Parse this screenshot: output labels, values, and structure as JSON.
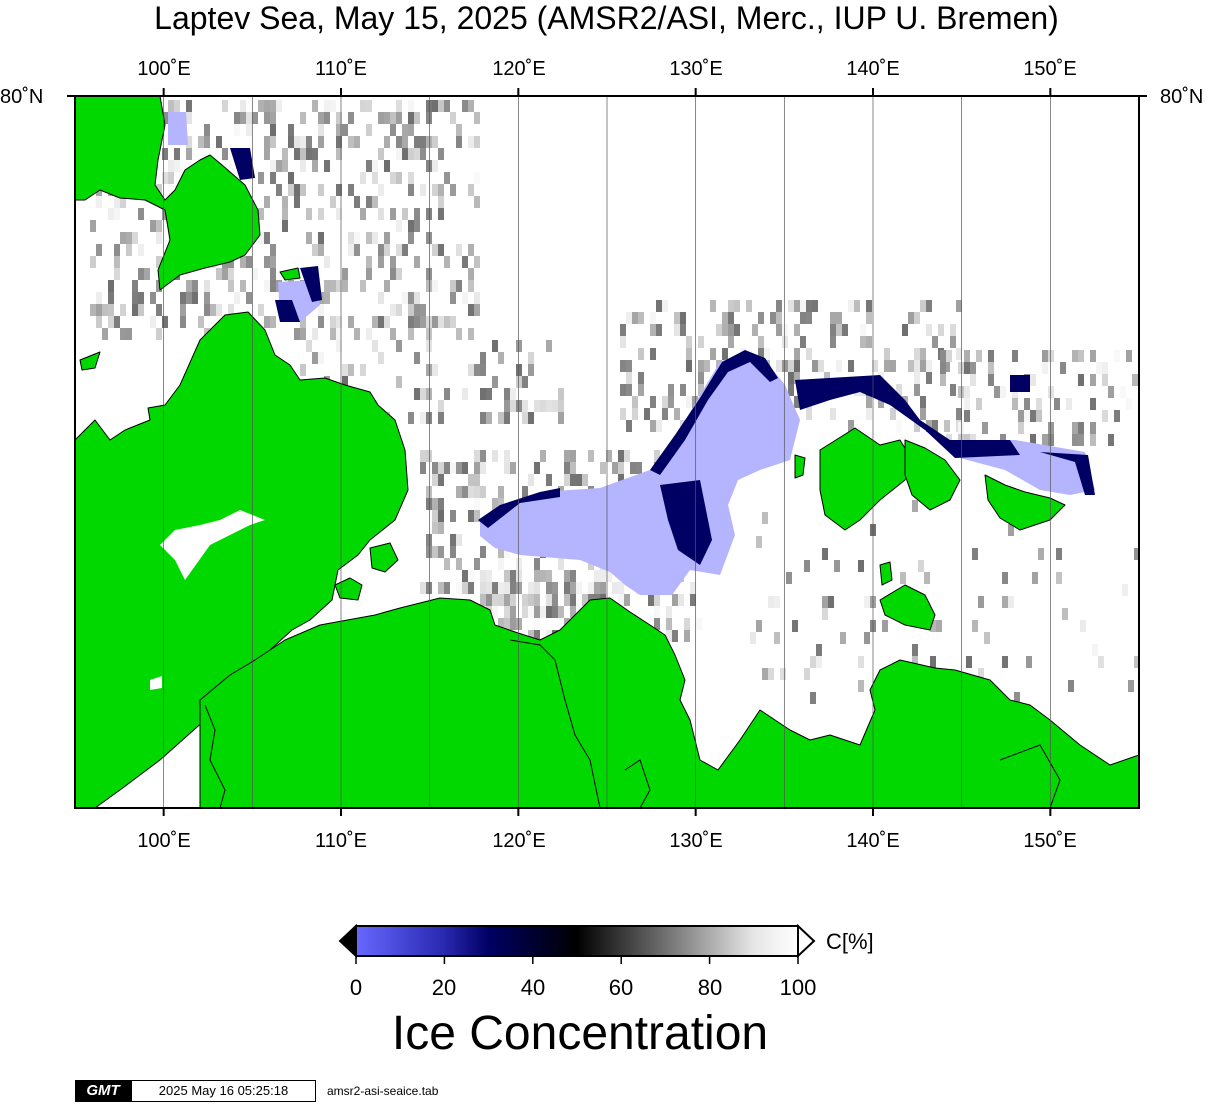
{
  "title": "Laptev Sea, May 15, 2025 (AMSR2/ASI, Merc., IUP U. Bremen)",
  "map": {
    "lon_labels_top": [
      "100˚E",
      "110˚E",
      "120˚E",
      "130˚E",
      "140˚E",
      "150˚E"
    ],
    "lon_labels_bottom": [
      "100˚E",
      "110˚E",
      "120˚E",
      "130˚E",
      "140˚E",
      "150˚E"
    ],
    "lat_label_left": "80˚N",
    "lat_label_right": "80˚N",
    "colors": {
      "land": "#00d800",
      "open_water": "#b4b4ff",
      "ice_full": "#ffffff",
      "gridline": "#555555"
    }
  },
  "colorbar": {
    "ticks": [
      "0",
      "20",
      "40",
      "60",
      "80",
      "100"
    ],
    "unit": "C[%]",
    "title": "Ice Concentration",
    "colors": [
      "#6464ff",
      "#000064",
      "#000000",
      "#808080",
      "#ffffff"
    ]
  },
  "footer": {
    "logo": "GMT",
    "timestamp": "2025 May 16 05:25:18",
    "filename": "amsr2-asi-seaice.tab"
  }
}
